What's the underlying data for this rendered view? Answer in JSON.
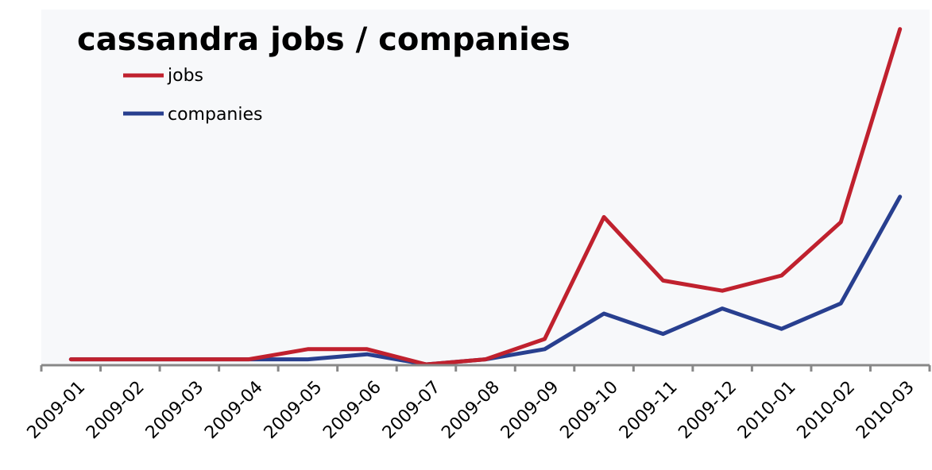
{
  "chart_data": {
    "type": "line",
    "title": "cassandra jobs / companies",
    "xlabel": "",
    "ylabel": "",
    "categories": [
      "2009-01",
      "2009-02",
      "2009-03",
      "2009-04",
      "2009-05",
      "2009-06",
      "2009-07",
      "2009-08",
      "2009-09",
      "2009-10",
      "2009-11",
      "2009-12",
      "2010-01",
      "2010-02",
      "2010-03"
    ],
    "series": [
      {
        "name": "jobs",
        "color": "#c0212e",
        "values": [
          1,
          1,
          1,
          1,
          3,
          3,
          0,
          1,
          5,
          29,
          16.5,
          14.5,
          17.5,
          28,
          66
        ]
      },
      {
        "name": "companies",
        "color": "#283f8f",
        "values": [
          1,
          1,
          1,
          1,
          1,
          2,
          0,
          1,
          3,
          10,
          6,
          11,
          7,
          12,
          33
        ]
      }
    ],
    "ylim": [
      0,
      70
    ],
    "grid": false,
    "legend": "top-left",
    "background_color": "#f7f8fa",
    "axis_color": "#888888"
  }
}
